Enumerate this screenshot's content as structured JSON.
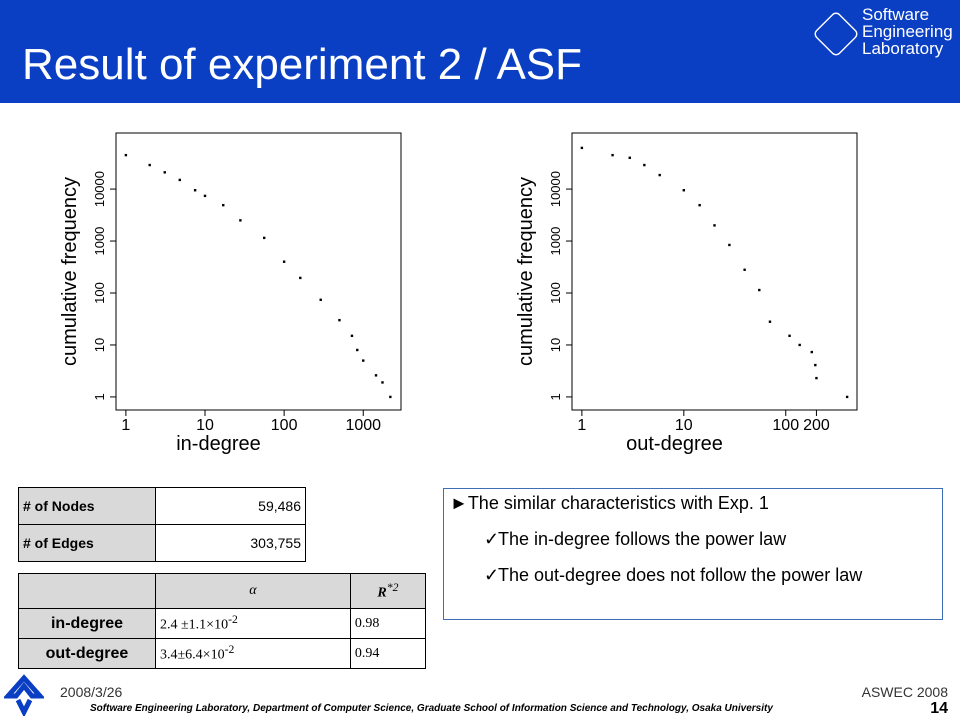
{
  "header": {
    "title": "Result of experiment 2 / ASF",
    "logo": [
      "Software",
      "Engineering",
      "Laboratory"
    ]
  },
  "chart_data": [
    {
      "type": "scatter",
      "xlabel": "in-degree",
      "ylabel": "cumulative frequency",
      "color": "#000000",
      "log_x": true,
      "log_y": true,
      "x": [
        1,
        2,
        3.1,
        4.8,
        7.5,
        10,
        17,
        28,
        56,
        100,
        160,
        290,
        500,
        720,
        840,
        1000,
        1450,
        1750,
        2200
      ],
      "values": [
        45000,
        29000,
        21000,
        15000,
        9500,
        7400,
        4900,
        2500,
        1150,
        400,
        195,
        74,
        30,
        15,
        8,
        5,
        2.6,
        1.9,
        1
      ],
      "xlim": [
        0.75,
        3000
      ],
      "ylim": [
        0.56,
        120000
      ],
      "xticks": [
        1,
        10,
        100,
        1000
      ],
      "yticks": [
        1,
        10,
        100,
        1000,
        10000
      ]
    },
    {
      "type": "scatter",
      "xlabel": "out-degree",
      "ylabel": "cumulative frequency",
      "color": "#000000",
      "log_x": true,
      "log_y": true,
      "x": [
        1,
        2,
        2.95,
        4.1,
        5.8,
        10,
        14.3,
        20,
        28,
        39.5,
        55,
        70,
        109,
        137,
        180,
        195,
        200,
        400
      ],
      "values": [
        62000,
        45000,
        40000,
        29000,
        18600,
        9500,
        4900,
        2000,
        840,
        280,
        114,
        28,
        15,
        10,
        7.3,
        4.1,
        2.3,
        1
      ],
      "xlim": [
        0.8,
        500
      ],
      "ylim": [
        0.56,
        120000
      ],
      "xticks": [
        1,
        10,
        100,
        200
      ],
      "yticks": [
        1,
        10,
        100,
        1000,
        10000
      ]
    }
  ],
  "table1": {
    "rows": [
      [
        "# of Nodes",
        "59,486"
      ],
      [
        "# of Edges",
        "303,755"
      ]
    ]
  },
  "table2": {
    "header": [
      {
        "text": "α",
        "sup": ""
      },
      {
        "text": "R",
        "sup": "*2"
      }
    ],
    "rows": [
      {
        "label": "in-degree",
        "alpha": {
          "text": "2.4 ±1.1×10",
          "sup": "-2"
        },
        "r2": "0.98"
      },
      {
        "label": "out-degree",
        "alpha": {
          "text": "3.4±6.4×10",
          "sup": "-2"
        },
        "r2": "0.94"
      }
    ]
  },
  "bullets": {
    "main": "►The similar characteristics with Exp. 1",
    "items": [
      "The in-degree follows the power law",
      "The out-degree does not follow the power law"
    ]
  },
  "footer": {
    "date": "2008/3/26",
    "conference": "ASWEC 2008",
    "credit": "Software Engineering Laboratory, Department of Computer Science, Graduate School of Information Science and Technology, Osaka University",
    "page": "14"
  }
}
